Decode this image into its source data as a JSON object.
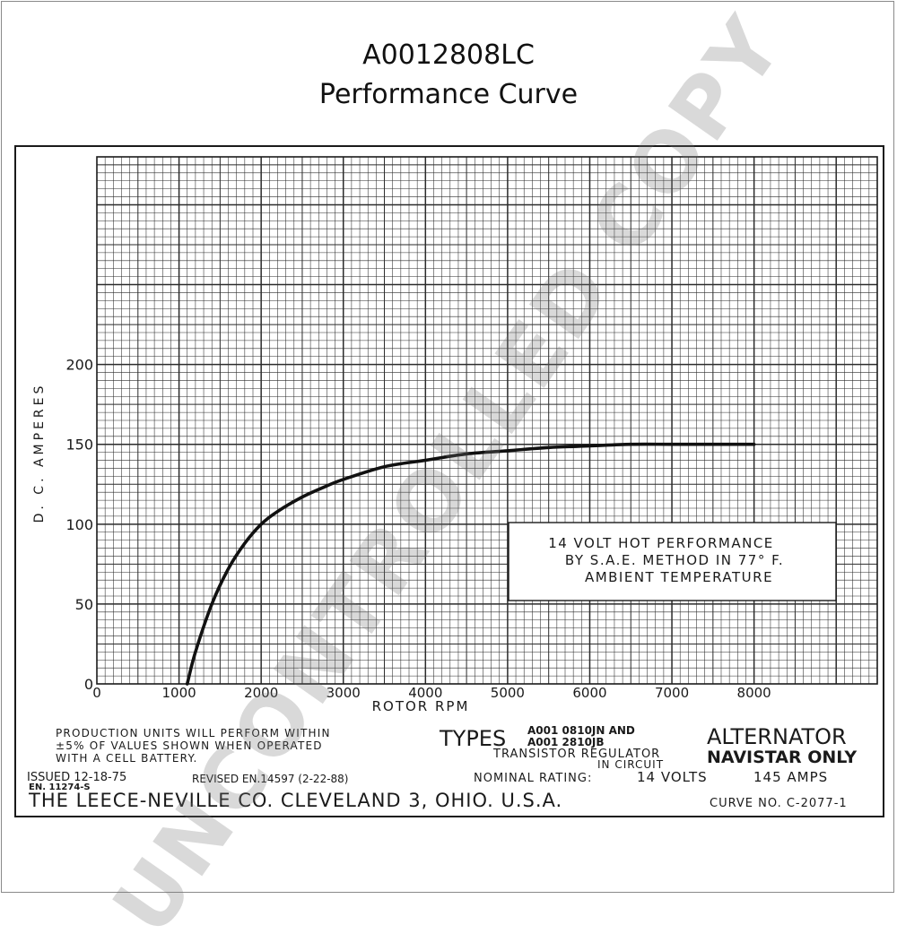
{
  "header": {
    "part_number": "A0012808LC",
    "subtitle": "Performance Curve"
  },
  "chart_data": {
    "type": "line",
    "title": "",
    "xlabel": "ROTOR RPM",
    "ylabel": "D. C. AMPERES",
    "xlim": [
      0,
      9500
    ],
    "ylim": [
      0,
      330
    ],
    "x_ticks": [
      "0",
      "1000",
      "2000",
      "3000",
      "4000",
      "5000",
      "6000",
      "7000",
      "8000"
    ],
    "x_tick_values": [
      0,
      1000,
      2000,
      3000,
      4000,
      5000,
      6000,
      7000,
      8000
    ],
    "y_ticks": [
      "0",
      "50",
      "100",
      "150",
      "200"
    ],
    "y_tick_values": [
      0,
      50,
      100,
      150,
      200
    ],
    "grid": true,
    "series": [
      {
        "x": [
          1100,
          1200,
          1400,
          1600,
          1800,
          2000,
          2200,
          2500,
          2800,
          3000,
          3500,
          4000,
          4500,
          5000,
          5500,
          6000,
          6500,
          7000,
          7500,
          8000
        ],
        "y": [
          0,
          20,
          50,
          72,
          88,
          100,
          108,
          117,
          124,
          128,
          136,
          140,
          144,
          146,
          148,
          149,
          150,
          150,
          150,
          150
        ]
      }
    ],
    "annotation": {
      "line1": "14 VOLT HOT PERFORMANCE",
      "line2": "BY S.A.E. METHOD IN 77° F.",
      "line3": "AMBIENT TEMPERATURE"
    }
  },
  "footer": {
    "production_note_1": "PRODUCTION UNITS WILL PERFORM WITHIN",
    "production_note_2": "±5% OF VALUES SHOWN WHEN OPERATED",
    "production_note_3": "WITH A CELL BATTERY.",
    "types_label": "TYPES",
    "type_1": "A001 0810JN AND",
    "type_2": "A001 2810JB",
    "regulator_1": "TRANSISTOR REGULATOR",
    "regulator_2": "IN CIRCUIT",
    "alternator": "ALTERNATOR",
    "navistar": "NAVISTAR ONLY",
    "issued": "ISSUED 12-18-75",
    "en_number": "EN. 11274-S",
    "revised": "REVISED EN.14597 (2-22-88)",
    "nominal_label": "NOMINAL RATING:",
    "volts": "14 VOLTS",
    "amps": "145 AMPS",
    "company": "THE LEECE-NEVILLE CO. CLEVELAND 3, OHIO. U.S.A.",
    "curve_no": "CURVE NO. C-2077-1"
  },
  "watermark": "UNCONTROLLED COPY",
  "colors": {
    "ink": "#1a1a1a",
    "grid": "#2b2b2b",
    "watermark": "#9a9a9a"
  }
}
